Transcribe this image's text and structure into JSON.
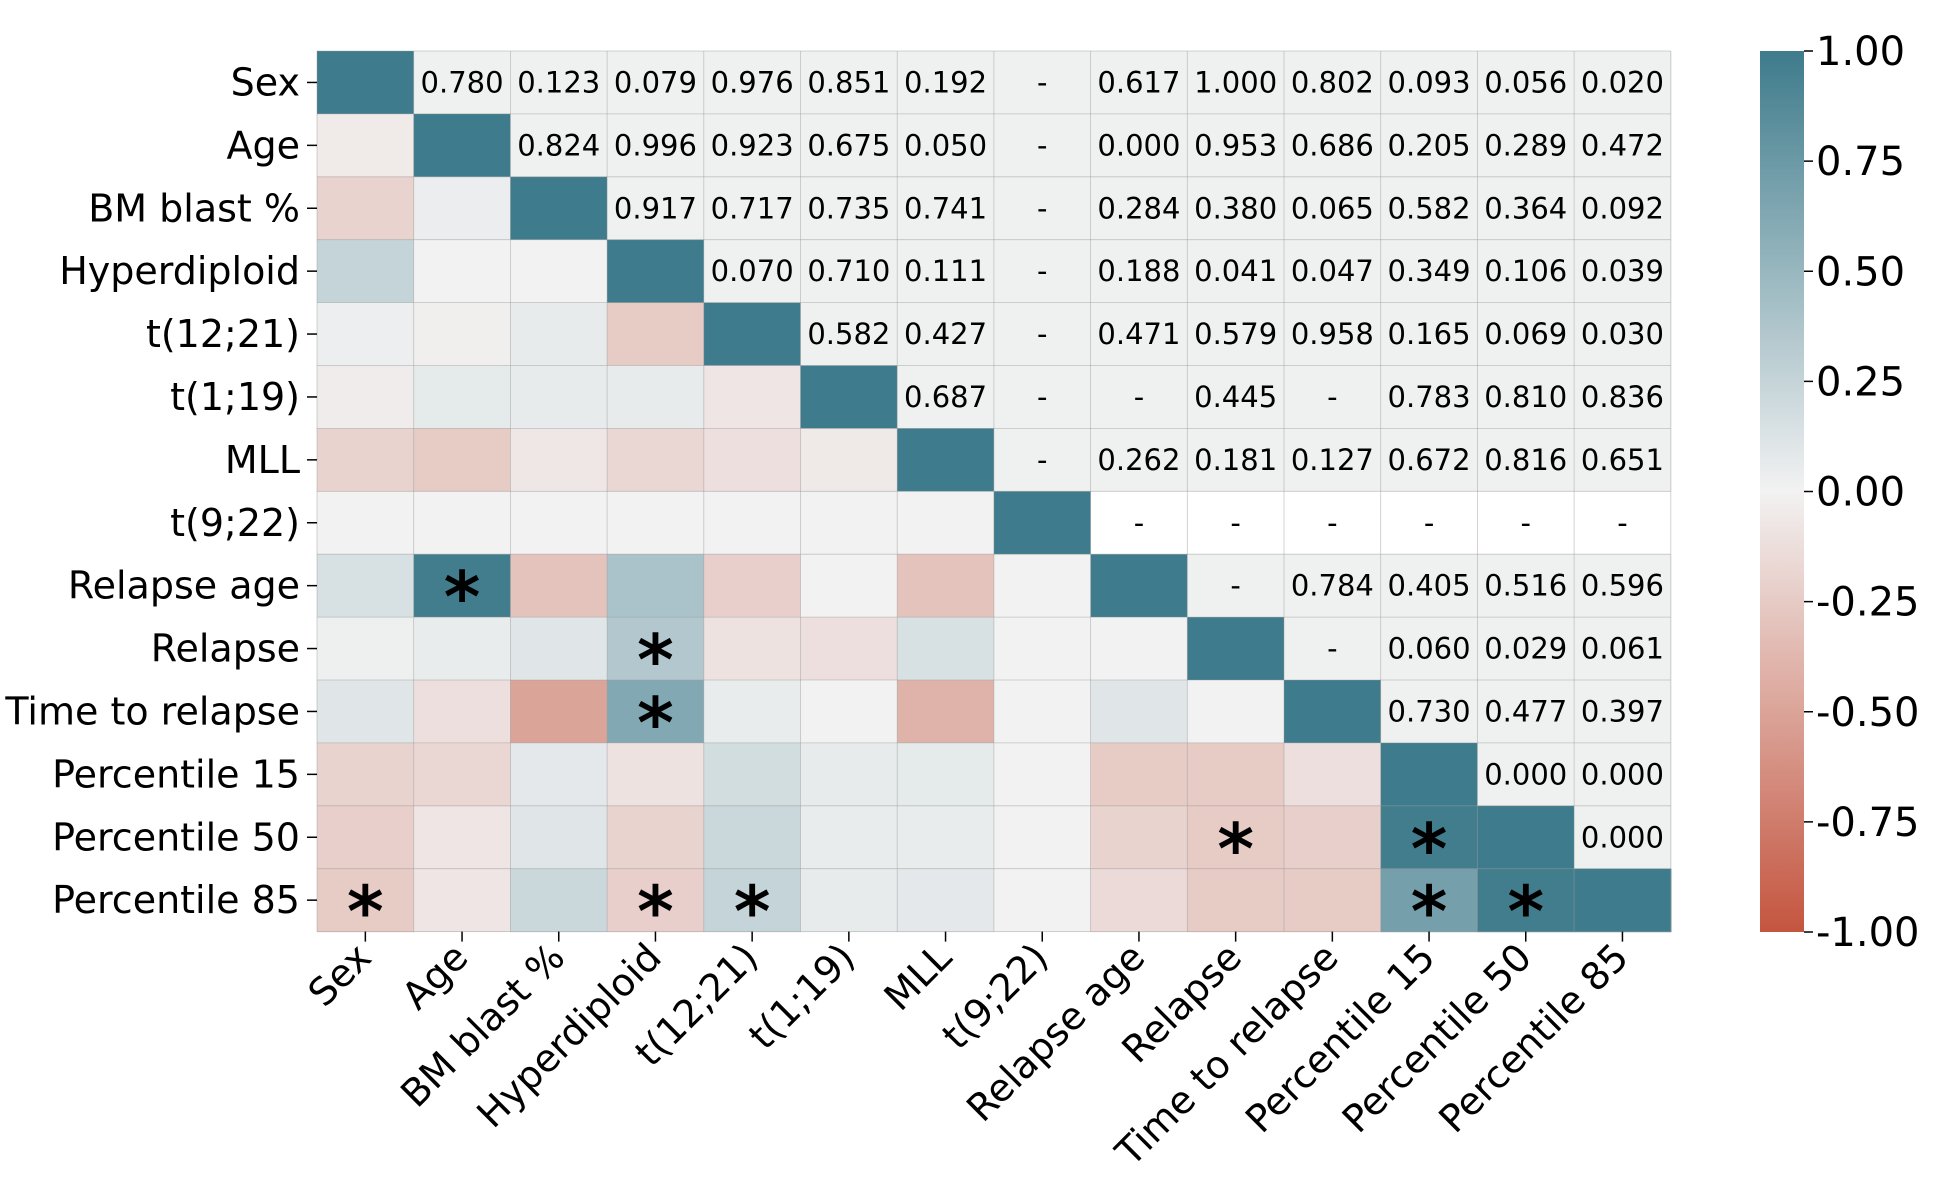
{
  "chart_data": {
    "type": "heatmap",
    "title": "",
    "labels": [
      "Sex",
      "Age",
      "BM blast %",
      "Hyperdiploid",
      "t(12;21)",
      "t(1;19)",
      "MLL",
      "t(9;22)",
      "Relapse age",
      "Relapse",
      "Time to relapse",
      "Percentile 15",
      "Percentile 50",
      "Percentile 85"
    ],
    "row_labels": [
      "Sex",
      "Age",
      "BM blast %",
      "Hyperdiploid",
      "t(12;21)",
      "t(1;19)",
      "Time to relapse",
      "Percentile 15",
      "Percentile 50",
      "Percentile 85"
    ],
    "colorbar": {
      "min": -1.0,
      "max": 1.0,
      "ticks": [
        "1.00",
        "0.75",
        "0.50",
        "0.25",
        "0.00",
        "-0.25",
        "-0.50",
        "-0.75",
        "-1.00"
      ],
      "low_color": "#c4553f",
      "mid_color": "#f2f2f2",
      "high_color": "#3e7b8c"
    },
    "upper_background": "#eff1f1",
    "diagonal": 1.0,
    "lower_correlations": [
      [],
      [
        -0.05
      ],
      [
        -0.2,
        0.04
      ],
      [
        0.25,
        0.0,
        0.0
      ],
      [
        0.03,
        -0.02,
        0.06,
        -0.25
      ],
      [
        -0.04,
        0.07,
        0.06,
        0.06,
        -0.08
      ],
      [
        -0.2,
        -0.25,
        -0.07,
        -0.18,
        -0.12,
        -0.06
      ],
      [
        0,
        0,
        0,
        0,
        0,
        0,
        0
      ],
      [
        0.15,
        0.98,
        -0.3,
        0.4,
        -0.22,
        0.0,
        -0.3,
        0
      ],
      [
        0.02,
        0.05,
        0.1,
        0.35,
        -0.1,
        -0.12,
        0.15,
        0,
        0.0
      ],
      [
        0.1,
        -0.12,
        -0.5,
        0.62,
        0.05,
        0.0,
        -0.4,
        0,
        0.1,
        0.0
      ],
      [
        -0.2,
        -0.18,
        0.08,
        -0.1,
        0.18,
        0.06,
        0.07,
        0,
        -0.25,
        -0.25,
        -0.12
      ],
      [
        -0.22,
        -0.08,
        0.1,
        -0.2,
        0.22,
        0.05,
        0.05,
        0,
        -0.2,
        -0.25,
        -0.22,
        0.98
      ],
      [
        -0.25,
        -0.08,
        0.22,
        -0.22,
        0.25,
        0.06,
        0.08,
        0,
        -0.15,
        -0.25,
        -0.25,
        0.7,
        0.98
      ]
    ],
    "p_values": [
      [
        "0.780",
        "0.123",
        "0.079",
        "0.976",
        "0.851",
        "0.192",
        "-",
        "0.617",
        "1.000",
        "0.802",
        "0.093",
        "0.056",
        "0.020"
      ],
      [
        "0.824",
        "0.996",
        "0.923",
        "0.675",
        "0.050",
        "-",
        "0.000",
        "0.953",
        "0.686",
        "0.205",
        "0.289",
        "0.472"
      ],
      [
        "0.917",
        "0.717",
        "0.735",
        "0.741",
        "-",
        "0.284",
        "0.380",
        "0.065",
        "0.582",
        "0.364",
        "0.092"
      ],
      [
        "0.070",
        "0.710",
        "0.111",
        "-",
        "0.188",
        "0.041",
        "0.047",
        "0.349",
        "0.106",
        "0.039"
      ],
      [
        "0.582",
        "0.427",
        "-",
        "0.471",
        "0.579",
        "0.958",
        "0.165",
        "0.069",
        "0.030"
      ],
      [
        "0.687",
        "-",
        "-",
        "0.445",
        "-",
        "0.783",
        "0.810",
        "0.836"
      ],
      [
        "-",
        "0.262",
        "0.181",
        "0.127",
        "0.672",
        "0.816",
        "0.651"
      ],
      [
        "-",
        "-",
        "-",
        "-",
        "-",
        "-"
      ],
      [
        "-",
        "0.784",
        "0.405",
        "0.516",
        "0.596"
      ],
      [
        "-",
        "0.060",
        "0.029",
        "0.061"
      ],
      [
        "0.730",
        "0.477",
        "0.397"
      ],
      [
        "0.000",
        "0.000"
      ],
      [
        "0.000"
      ]
    ],
    "significance_marker": "*",
    "significant_cells": [
      [
        8,
        1
      ],
      [
        9,
        3
      ],
      [
        10,
        3
      ],
      [
        12,
        9
      ],
      [
        12,
        11
      ],
      [
        13,
        0
      ],
      [
        13,
        3
      ],
      [
        13,
        4
      ],
      [
        13,
        11
      ],
      [
        13,
        12
      ]
    ]
  }
}
